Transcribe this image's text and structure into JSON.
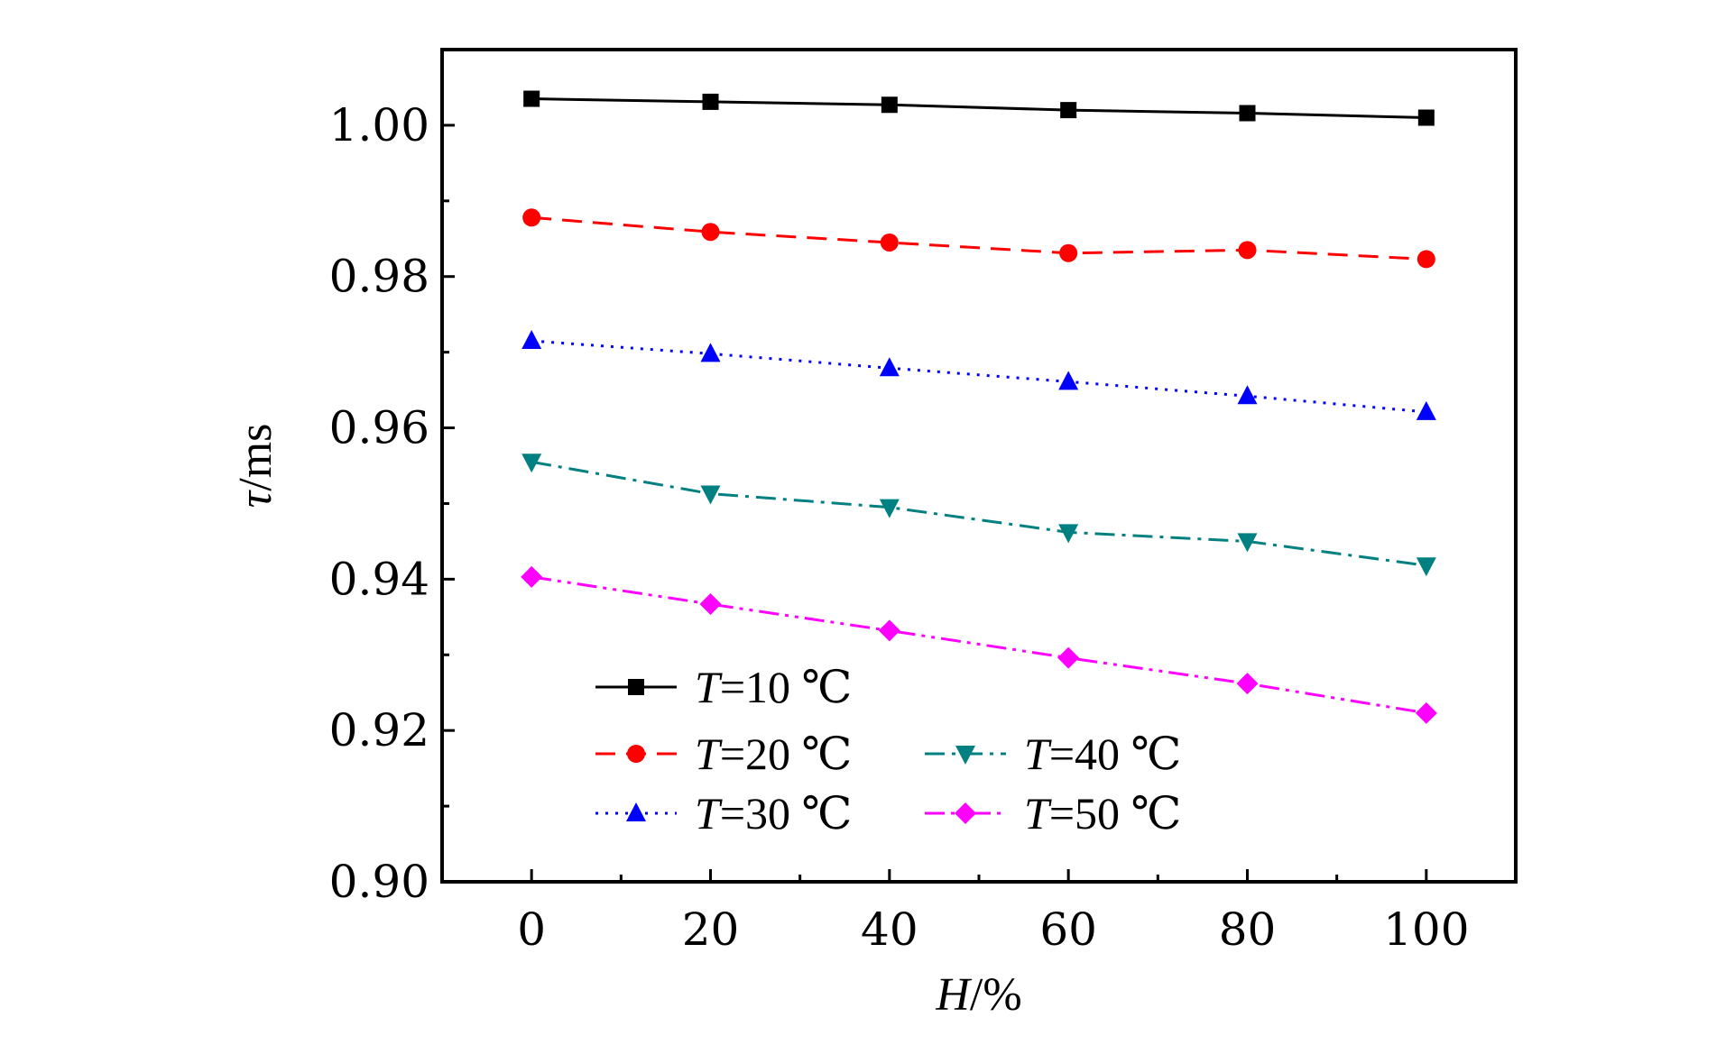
{
  "chart_data": {
    "type": "line",
    "xlabel": {
      "var": "H",
      "unit": "/%"
    },
    "ylabel": {
      "var": "τ",
      "unit": "/ms"
    },
    "xlim": [
      -10,
      110
    ],
    "ylim": [
      0.9,
      1.01
    ],
    "x": [
      0,
      20,
      40,
      60,
      80,
      100
    ],
    "xticks": [
      "0",
      "20",
      "40",
      "60",
      "80",
      "100"
    ],
    "yticks": [
      "0.90",
      "0.92",
      "0.94",
      "0.96",
      "0.98",
      "1.00"
    ],
    "legend_position": "bottom-left",
    "series": [
      {
        "name": "T=10 ℃",
        "var": "T",
        "rest": "=10 ℃",
        "color": "#000000",
        "marker": "square",
        "dash": "solid",
        "values": [
          1.0035,
          1.0031,
          1.0027,
          1.002,
          1.0016,
          1.001
        ]
      },
      {
        "name": "T=20 ℃",
        "var": "T",
        "rest": "=20 ℃",
        "color": "#ff0000",
        "marker": "circle",
        "dash": "dash",
        "values": [
          0.9878,
          0.9859,
          0.9845,
          0.9831,
          0.9835,
          0.9823
        ]
      },
      {
        "name": "T=30 ℃",
        "var": "T",
        "rest": "=30 ℃",
        "color": "#0000ff",
        "marker": "triangle-up",
        "dash": "dot",
        "values": [
          0.9715,
          0.9698,
          0.9679,
          0.9661,
          0.9642,
          0.9621
        ]
      },
      {
        "name": "T=40 ℃",
        "var": "T",
        "rest": "=40 ℃",
        "color": "#008080",
        "marker": "triangle-down",
        "dash": "dashdot",
        "values": [
          0.9555,
          0.9513,
          0.9495,
          0.9462,
          0.945,
          0.9418
        ]
      },
      {
        "name": "T=50 ℃",
        "var": "T",
        "rest": "=50 ℃",
        "color": "#ff00ff",
        "marker": "diamond",
        "dash": "dashdotdot",
        "values": [
          0.9403,
          0.9367,
          0.9332,
          0.9296,
          0.9262,
          0.9223
        ]
      }
    ]
  }
}
